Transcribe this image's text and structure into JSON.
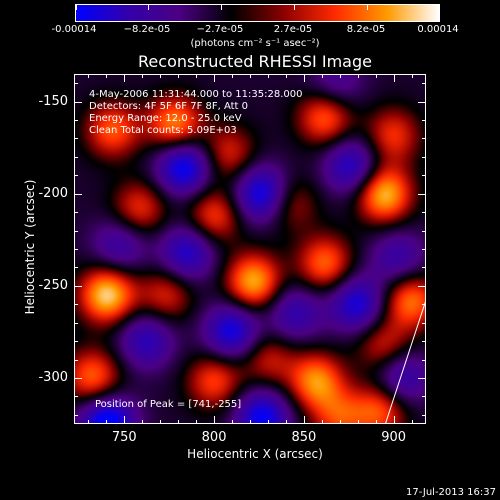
{
  "colorbar": {
    "labels": [
      "-0.00014",
      "−8.2e-05",
      "−2.7e-05",
      "2.7e-05",
      "8.2e-05",
      "0.00014"
    ],
    "units": "(photons cm⁻² s⁻¹ asec⁻²)",
    "colors": [
      "#0000ff",
      "#3300aa",
      "#4b0082",
      "#000000",
      "#8b0000",
      "#ff2a00",
      "#ff9a00",
      "#ffffff"
    ]
  },
  "chart_data": {
    "type": "heatmap",
    "title": "Reconstructed RHESSI Image",
    "xlabel": "Heliocentric X (arcsec)",
    "ylabel": "Heliocentric Y (arcsec)",
    "xlim": [
      722,
      918
    ],
    "ylim": [
      -325,
      -135
    ],
    "xticks": [
      "750",
      "800",
      "850",
      "900"
    ],
    "xtick_values": [
      750,
      800,
      850,
      900
    ],
    "yticks": [
      "-150",
      "-200",
      "-250",
      "-300"
    ],
    "ytick_values": [
      -150,
      -200,
      -250,
      -300
    ],
    "colorbar_range": [
      -0.00014,
      0.00014
    ],
    "peak": [
      741,
      -255
    ],
    "sources": [
      {
        "x": 740,
        "y": -255,
        "v": 1.0
      },
      {
        "x": 732,
        "y": -300,
        "v": 0.7
      },
      {
        "x": 743,
        "y": -165,
        "v": 0.65
      },
      {
        "x": 778,
        "y": -162,
        "v": 0.8
      },
      {
        "x": 808,
        "y": -178,
        "v": 0.5
      },
      {
        "x": 758,
        "y": -208,
        "v": 0.55
      },
      {
        "x": 800,
        "y": -212,
        "v": 0.6
      },
      {
        "x": 862,
        "y": -158,
        "v": 0.7
      },
      {
        "x": 900,
        "y": -168,
        "v": 0.55
      },
      {
        "x": 895,
        "y": -200,
        "v": 0.95
      },
      {
        "x": 842,
        "y": -205,
        "v": 0.45
      },
      {
        "x": 822,
        "y": -248,
        "v": 0.9
      },
      {
        "x": 862,
        "y": -238,
        "v": 0.7
      },
      {
        "x": 910,
        "y": -258,
        "v": 0.75
      },
      {
        "x": 773,
        "y": -255,
        "v": 0.5
      },
      {
        "x": 800,
        "y": -302,
        "v": 0.6
      },
      {
        "x": 830,
        "y": -290,
        "v": 0.45
      },
      {
        "x": 857,
        "y": -302,
        "v": 0.8
      },
      {
        "x": 895,
        "y": -283,
        "v": 0.5
      },
      {
        "x": 893,
        "y": -318,
        "v": 0.65
      },
      {
        "x": 870,
        "y": -322,
        "v": 0.55
      },
      {
        "x": 783,
        "y": -185,
        "v": -0.9
      },
      {
        "x": 740,
        "y": -325,
        "v": -1.0
      },
      {
        "x": 827,
        "y": -200,
        "v": -0.9
      },
      {
        "x": 877,
        "y": -185,
        "v": -0.7
      },
      {
        "x": 785,
        "y": -232,
        "v": -0.7
      },
      {
        "x": 810,
        "y": -275,
        "v": -0.8
      },
      {
        "x": 762,
        "y": -280,
        "v": -0.6
      },
      {
        "x": 880,
        "y": -260,
        "v": -0.75
      },
      {
        "x": 903,
        "y": -235,
        "v": -0.5
      },
      {
        "x": 845,
        "y": -265,
        "v": -0.55
      },
      {
        "x": 827,
        "y": -322,
        "v": -0.85
      },
      {
        "x": 905,
        "y": -300,
        "v": -0.6
      },
      {
        "x": 868,
        "y": -140,
        "v": -0.4
      },
      {
        "x": 747,
        "y": -228,
        "v": -0.5
      }
    ]
  },
  "annotations": {
    "time": "4-May-2006 11:31:44.000 to 11:35:28.000",
    "detectors": "Detectors: 4F 5F 6F 7F 8F, Att 0",
    "energy": "Energy Range: 12.0 - 25.0 keV",
    "clean": "Clean    Total counts: 5.09E+03",
    "peak": "Position of Peak = [741,-255]"
  },
  "footer": "17-Jul-2013 16:37"
}
